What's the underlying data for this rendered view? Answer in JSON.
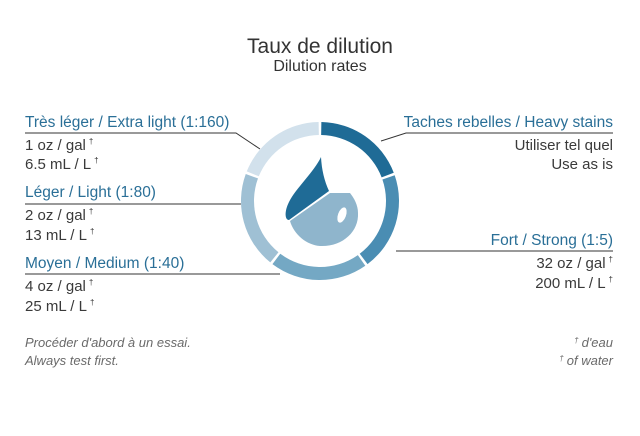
{
  "title": "Taux de dilution",
  "subtitle": "Dilution rates",
  "dagger": "†",
  "levels": [
    {
      "label": "Très léger / Extra light (1:160)",
      "line1": "1 oz / gal",
      "line2": "6.5 mL / L"
    },
    {
      "label": "Léger / Light (1:80)",
      "line1": "2 oz / gal",
      "line2": "13 mL / L"
    },
    {
      "label": "Moyen / Medium (1:40)",
      "line1": "4 oz / gal",
      "line2": "25 mL / L"
    },
    {
      "label": "Taches rebelles / Heavy stains",
      "line1": "Utiliser tel quel",
      "line2": "Use as is"
    },
    {
      "label": "Fort / Strong (1:5)",
      "line1": "32 oz / gal",
      "line2": "200 mL / L"
    }
  ],
  "notes": {
    "left_fr": "Procéder d'abord à un essai.",
    "left_en": "Always test first.",
    "right_fr": "d'eau",
    "right_en": "of water"
  },
  "colors": {
    "accent": "#2a6f97",
    "ring_extra_light": "#d2e1ec",
    "ring_light": "#9fc0d4",
    "ring_medium": "#74a8c4",
    "ring_strong": "#4a8db3",
    "ring_heavy": "#1f6b96",
    "drop_dark": "#1f6b96",
    "drop_light": "#8fb5cc"
  },
  "icons": [
    "water-drop-icon"
  ]
}
